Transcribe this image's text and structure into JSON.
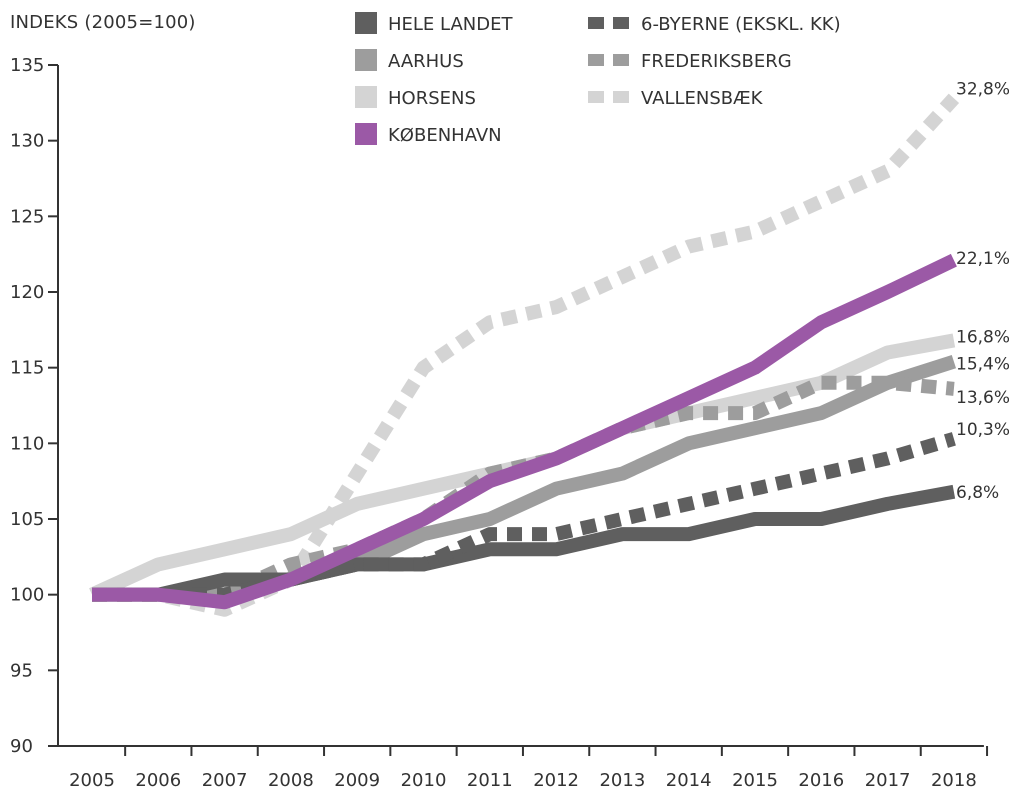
{
  "chart_data": {
    "type": "line",
    "ylabel": "INDEKS (2005=100)",
    "xlabel": "",
    "ylim": [
      90,
      135
    ],
    "yticks": [
      90,
      95,
      100,
      105,
      110,
      115,
      120,
      125,
      130,
      135
    ],
    "categories": [
      "2005",
      "2006",
      "2007",
      "2008",
      "2009",
      "2010",
      "2011",
      "2012",
      "2013",
      "2014",
      "2015",
      "2016",
      "2017",
      "2018"
    ],
    "series": [
      {
        "name": "HELE LANDET",
        "style": "solid",
        "color": "#5f5f5f",
        "values": [
          100,
          100,
          101,
          101,
          102,
          102,
          103,
          103,
          104,
          104,
          105,
          105,
          106,
          106.8
        ],
        "end_label": "6,8%"
      },
      {
        "name": "AARHUS",
        "style": "solid",
        "color": "#9d9d9d",
        "values": [
          100,
          100,
          100,
          101,
          102,
          104,
          105,
          107,
          108,
          110,
          111,
          112,
          114,
          115.4
        ],
        "end_label": "15,4%"
      },
      {
        "name": "HORSENS",
        "style": "solid",
        "color": "#d4d4d4",
        "values": [
          100,
          102,
          103,
          104,
          106,
          107,
          108,
          109,
          111,
          112,
          113,
          114,
          116,
          116.8
        ],
        "end_label": "16,8%"
      },
      {
        "name": "KØBENHAVN",
        "style": "solid",
        "color": "#9b59a6",
        "values": [
          100,
          100,
          99.5,
          101,
          103,
          105,
          107.5,
          109,
          111,
          113,
          115,
          118,
          120,
          122.1
        ],
        "end_label": "22,1%"
      },
      {
        "name": "6-BYERNE (EKSKL. KK)",
        "style": "dashed",
        "color": "#5f5f5f",
        "values": [
          100,
          100,
          100,
          101,
          102,
          102,
          104,
          104,
          105,
          106,
          107,
          108,
          109,
          110.3
        ],
        "end_label": "10,3%"
      },
      {
        "name": "FREDERIKSBERG",
        "style": "dashed",
        "color": "#9d9d9d",
        "values": [
          100,
          100,
          100,
          102,
          103,
          105,
          108,
          109,
          111,
          112,
          112,
          114,
          114,
          113.6
        ],
        "end_label": "13,6%"
      },
      {
        "name": "VALLENSBÆK",
        "style": "dashed",
        "color": "#d4d4d4",
        "values": [
          100,
          100,
          99,
          101,
          108,
          115,
          118,
          119,
          121,
          123,
          124,
          126,
          128,
          132.8
        ],
        "end_label": "32,8%"
      }
    ],
    "legend_placement": "top",
    "grid": false
  }
}
